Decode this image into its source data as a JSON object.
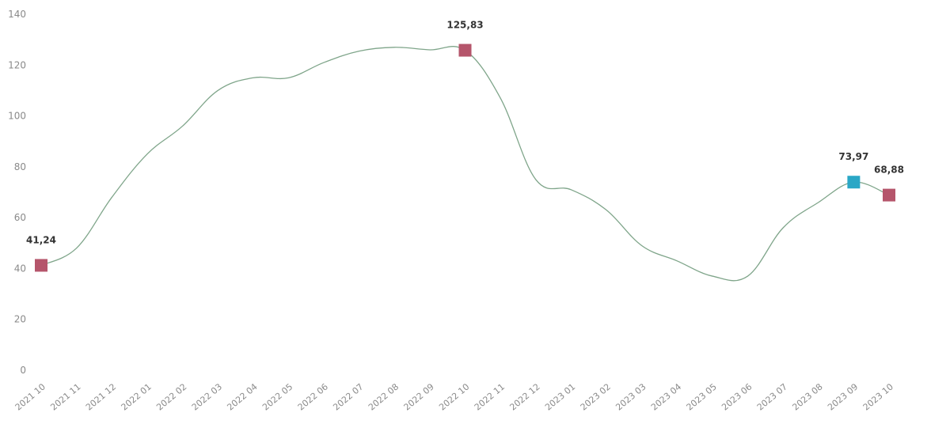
{
  "chart_data": {
    "type": "line",
    "title": "",
    "xlabel": "",
    "ylabel": "",
    "ylim": [
      0,
      140
    ],
    "y_ticks": [
      "0",
      "20",
      "40",
      "60",
      "80",
      "100",
      "120",
      "140"
    ],
    "grid": false,
    "categories": [
      "2021 10",
      "2021 11",
      "2021 12",
      "2022 01",
      "2022 02",
      "2022 03",
      "2022 04",
      "2022 05",
      "2022 06",
      "2022 07",
      "2022 08",
      "2022 09",
      "2022 10",
      "2022 11",
      "2022 12",
      "2023 01",
      "2023 02",
      "2023 03",
      "2023 04",
      "2023 05",
      "2023 06",
      "2023 07",
      "2023 08",
      "2023 09",
      "2023 10"
    ],
    "series": [
      {
        "values": [
          41.24,
          48,
          68,
          85,
          96,
          110,
          115,
          115,
          121,
          125.5,
          127,
          126,
          125.83,
          107,
          75,
          71,
          63,
          49,
          43,
          37,
          37,
          56,
          66,
          73.97,
          68.88
        ],
        "color": "#7fa58a"
      }
    ],
    "markers": [
      {
        "index": 0,
        "label": "41,24",
        "color": "#b5556b"
      },
      {
        "index": 12,
        "label": "125,83",
        "color": "#b5556b"
      },
      {
        "index": 23,
        "label": "73,97",
        "color": "#2aa7c6"
      },
      {
        "index": 24,
        "label": "68,88",
        "color": "#b5556b"
      }
    ],
    "marker_shape": "square"
  }
}
